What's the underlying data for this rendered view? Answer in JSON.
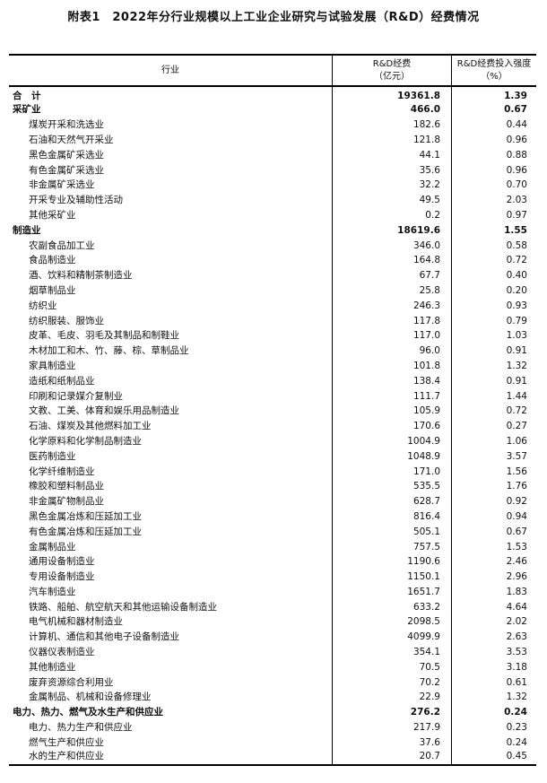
{
  "title": "附表1　2022年分行业规模以上工业企业研究与试验发展（R&D）经费情况",
  "table": {
    "headers": [
      {
        "line1": "行业",
        "line2": ""
      },
      {
        "line1": "R&D经费",
        "line2": "（亿元）"
      },
      {
        "line1": "R&D经费投入强度",
        "line2": "（%）"
      }
    ],
    "rows": [
      {
        "name": "合　计",
        "funds": "19361.8",
        "intensity": "1.39",
        "bold": true
      },
      {
        "name": "采矿业",
        "funds": "466.0",
        "intensity": "0.67",
        "bold": true
      },
      {
        "name": "煤炭开采和洗选业",
        "funds": "182.6",
        "intensity": "0.44"
      },
      {
        "name": "石油和天然气开采业",
        "funds": "121.8",
        "intensity": "0.96"
      },
      {
        "name": "黑色金属矿采选业",
        "funds": "44.1",
        "intensity": "0.88"
      },
      {
        "name": "有色金属矿采选业",
        "funds": "35.6",
        "intensity": "0.96"
      },
      {
        "name": "非金属矿采选业",
        "funds": "32.2",
        "intensity": "0.70"
      },
      {
        "name": "开采专业及辅助性活动",
        "funds": "49.5",
        "intensity": "2.03"
      },
      {
        "name": "其他采矿业",
        "funds": "0.2",
        "intensity": "0.97"
      },
      {
        "name": "制造业",
        "funds": "18619.6",
        "intensity": "1.55",
        "bold": true
      },
      {
        "name": "农副食品加工业",
        "funds": "346.0",
        "intensity": "0.58"
      },
      {
        "name": "食品制造业",
        "funds": "164.8",
        "intensity": "0.72"
      },
      {
        "name": "酒、饮料和精制茶制造业",
        "funds": "67.7",
        "intensity": "0.40"
      },
      {
        "name": "烟草制品业",
        "funds": "25.8",
        "intensity": "0.20"
      },
      {
        "name": "纺织业",
        "funds": "246.3",
        "intensity": "0.93"
      },
      {
        "name": "纺织服装、服饰业",
        "funds": "117.8",
        "intensity": "0.79"
      },
      {
        "name": "皮革、毛皮、羽毛及其制品和制鞋业",
        "funds": "117.0",
        "intensity": "1.03"
      },
      {
        "name": "木材加工和木、竹、藤、棕、草制品业",
        "funds": "96.0",
        "intensity": "0.91"
      },
      {
        "name": "家具制造业",
        "funds": "101.8",
        "intensity": "1.32"
      },
      {
        "name": "造纸和纸制品业",
        "funds": "138.4",
        "intensity": "0.91"
      },
      {
        "name": "印刷和记录媒介复制业",
        "funds": "111.7",
        "intensity": "1.44"
      },
      {
        "name": "文教、工美、体育和娱乐用品制造业",
        "funds": "105.9",
        "intensity": "0.72"
      },
      {
        "name": "石油、煤炭及其他燃料加工业",
        "funds": "170.6",
        "intensity": "0.27"
      },
      {
        "name": "化学原料和化学制品制造业",
        "funds": "1004.9",
        "intensity": "1.06"
      },
      {
        "name": "医药制造业",
        "funds": "1048.9",
        "intensity": "3.57"
      },
      {
        "name": "化学纤维制造业",
        "funds": "171.0",
        "intensity": "1.56"
      },
      {
        "name": "橡胶和塑料制品业",
        "funds": "535.5",
        "intensity": "1.76"
      },
      {
        "name": "非金属矿物制品业",
        "funds": "628.7",
        "intensity": "0.92"
      },
      {
        "name": "黑色金属冶炼和压延加工业",
        "funds": "816.4",
        "intensity": "0.94"
      },
      {
        "name": "有色金属冶炼和压延加工业",
        "funds": "505.1",
        "intensity": "0.67"
      },
      {
        "name": "金属制品业",
        "funds": "757.5",
        "intensity": "1.53"
      },
      {
        "name": "通用设备制造业",
        "funds": "1190.6",
        "intensity": "2.46"
      },
      {
        "name": "专用设备制造业",
        "funds": "1150.1",
        "intensity": "2.96"
      },
      {
        "name": "汽车制造业",
        "funds": "1651.7",
        "intensity": "1.83"
      },
      {
        "name": "铁路、船舶、航空航天和其他运输设备制造业",
        "funds": "633.2",
        "intensity": "4.64"
      },
      {
        "name": "电气机械和器材制造业",
        "funds": "2098.5",
        "intensity": "2.02"
      },
      {
        "name": "计算机、通信和其他电子设备制造业",
        "funds": "4099.9",
        "intensity": "2.63"
      },
      {
        "name": "仪器仪表制造业",
        "funds": "354.1",
        "intensity": "3.53"
      },
      {
        "name": "其他制造业",
        "funds": "70.5",
        "intensity": "3.18"
      },
      {
        "name": "废弃资源综合利用业",
        "funds": "70.2",
        "intensity": "0.61"
      },
      {
        "name": "金属制品、机械和设备修理业",
        "funds": "22.9",
        "intensity": "1.32"
      },
      {
        "name": "电力、热力、燃气及水生产和供应业",
        "funds": "276.2",
        "intensity": "0.24",
        "bold": true
      },
      {
        "name": "电力、热力生产和供应业",
        "funds": "217.9",
        "intensity": "0.23"
      },
      {
        "name": "燃气生产和供应业",
        "funds": "37.6",
        "intensity": "0.24"
      },
      {
        "name": "水的生产和供应业",
        "funds": "20.7",
        "intensity": "0.45"
      }
    ]
  }
}
